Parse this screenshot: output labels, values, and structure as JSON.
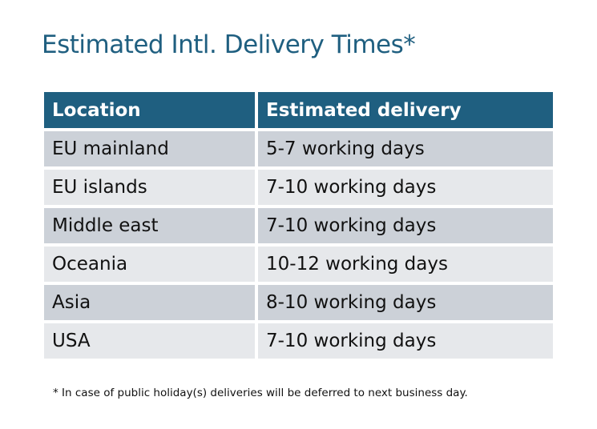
{
  "title": "Estimated Intl. Delivery Times*",
  "table": {
    "headers": [
      "Location",
      "Estimated delivery"
    ],
    "rows": [
      [
        "EU mainland",
        "5-7 working days"
      ],
      [
        "EU islands",
        "7-10 working days"
      ],
      [
        "Middle east",
        "7-10 working days"
      ],
      [
        "Oceania",
        "10-12 working days"
      ],
      [
        "Asia",
        "8-10 working days"
      ],
      [
        "USA",
        "7-10 working days"
      ]
    ]
  },
  "footnote": "* In case of public holiday(s) deliveries will be deferred to next business day.",
  "colors": {
    "header": "#1f5f80",
    "row_odd": "#ccd1d8",
    "row_even": "#e6e8eb",
    "title": "#1f5f80"
  }
}
